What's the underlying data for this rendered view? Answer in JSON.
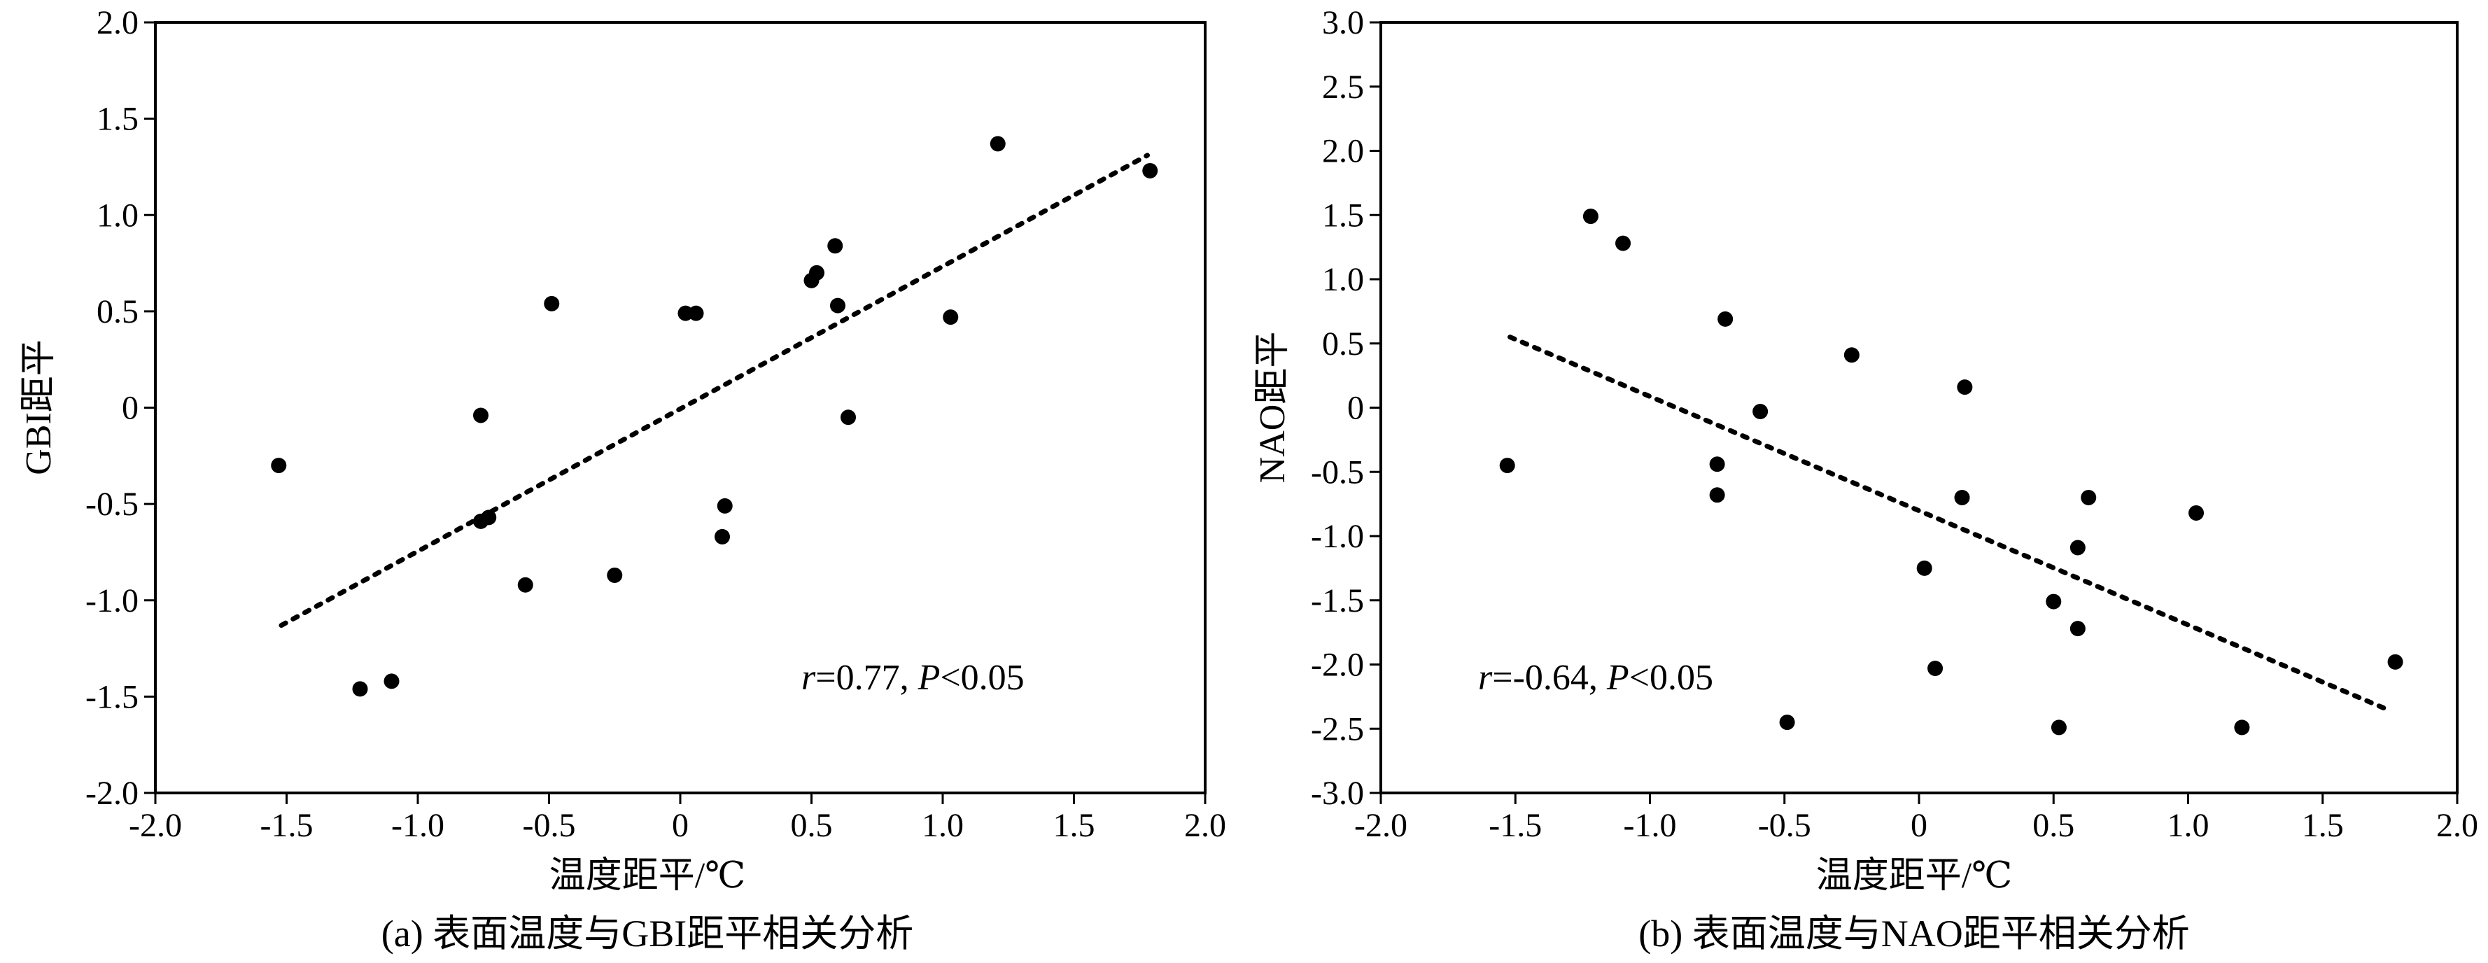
{
  "chart_data": [
    {
      "type": "scatter",
      "caption": "(a) 表面温度与GBI距平相关分析",
      "xlabel": "温度距平/℃",
      "ylabel": "GBI距平",
      "xlim": [
        -2.0,
        2.0
      ],
      "ylim": [
        -2.0,
        2.0
      ],
      "xticks": [
        "-2.0",
        "-1.5",
        "-1.0",
        "-0.5",
        "0",
        "0.5",
        "1.0",
        "1.5",
        "2.0"
      ],
      "yticks": [
        "2.0",
        "1.5",
        "1.0",
        "0.5",
        "0",
        "-0.5",
        "-1.0",
        "-1.5",
        "-2.0"
      ],
      "annotation": {
        "r_label": "r",
        "r_value": "=0.77, ",
        "p_label": "P",
        "p_value": "<0.05"
      },
      "trendline": {
        "x": [
          -1.52,
          1.78
        ],
        "y": [
          -1.13,
          1.31
        ]
      },
      "points": [
        {
          "x": -1.53,
          "y": -0.3
        },
        {
          "x": -1.22,
          "y": -1.46
        },
        {
          "x": -1.1,
          "y": -1.42
        },
        {
          "x": -0.76,
          "y": -0.04
        },
        {
          "x": -0.76,
          "y": -0.59
        },
        {
          "x": -0.73,
          "y": -0.57
        },
        {
          "x": -0.59,
          "y": -0.92
        },
        {
          "x": -0.49,
          "y": 0.54
        },
        {
          "x": -0.25,
          "y": -0.87
        },
        {
          "x": 0.02,
          "y": 0.49
        },
        {
          "x": 0.06,
          "y": 0.49
        },
        {
          "x": 0.16,
          "y": -0.67
        },
        {
          "x": 0.17,
          "y": -0.51
        },
        {
          "x": 0.5,
          "y": 0.66
        },
        {
          "x": 0.52,
          "y": 0.7
        },
        {
          "x": 0.59,
          "y": 0.84
        },
        {
          "x": 0.6,
          "y": 0.53
        },
        {
          "x": 0.64,
          "y": -0.05
        },
        {
          "x": 1.03,
          "y": 0.47
        },
        {
          "x": 1.21,
          "y": 1.37
        },
        {
          "x": 1.79,
          "y": 1.23
        }
      ]
    },
    {
      "type": "scatter",
      "caption": "(b) 表面温度与NAO距平相关分析",
      "xlabel": "温度距平/℃",
      "ylabel": "NAO距平",
      "xlim": [
        -2.0,
        2.0
      ],
      "ylim": [
        -3.0,
        3.0
      ],
      "xticks": [
        "-2.0",
        "-1.5",
        "-1.0",
        "-0.5",
        "0",
        "0.5",
        "1.0",
        "1.5",
        "2.0"
      ],
      "yticks": [
        "3.0",
        "2.5",
        "2.0",
        "1.5",
        "1.0",
        "0.5",
        "0",
        "-0.5",
        "-1.0",
        "-1.5",
        "-2.0",
        "-2.5",
        "-3.0"
      ],
      "annotation": {
        "r_label": "r",
        "r_value": "=-0.64, ",
        "p_label": "P",
        "p_value": "<0.05"
      },
      "trendline": {
        "x": [
          -1.52,
          1.74
        ],
        "y": [
          0.55,
          -2.35
        ]
      },
      "points": [
        {
          "x": -1.53,
          "y": -0.45
        },
        {
          "x": -1.22,
          "y": 1.49
        },
        {
          "x": -1.1,
          "y": 1.28
        },
        {
          "x": -0.75,
          "y": -0.44
        },
        {
          "x": -0.75,
          "y": -0.68
        },
        {
          "x": -0.72,
          "y": 0.69
        },
        {
          "x": -0.59,
          "y": -0.03
        },
        {
          "x": -0.49,
          "y": -2.45
        },
        {
          "x": -0.25,
          "y": 0.41
        },
        {
          "x": 0.02,
          "y": -1.25
        },
        {
          "x": 0.06,
          "y": -2.03
        },
        {
          "x": 0.16,
          "y": -0.7
        },
        {
          "x": 0.17,
          "y": 0.16
        },
        {
          "x": 0.5,
          "y": -1.51
        },
        {
          "x": 0.52,
          "y": -2.49
        },
        {
          "x": 0.59,
          "y": -1.09
        },
        {
          "x": 0.59,
          "y": -1.72
        },
        {
          "x": 0.63,
          "y": -0.7
        },
        {
          "x": 1.03,
          "y": -0.82
        },
        {
          "x": 1.2,
          "y": -2.49
        },
        {
          "x": 1.77,
          "y": -1.98
        }
      ]
    }
  ]
}
